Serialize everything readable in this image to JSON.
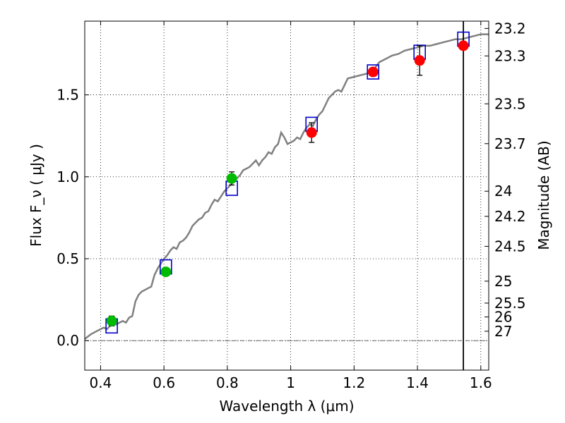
{
  "chart_data": {
    "type": "scatter",
    "xlabel": "Wavelength  λ (μm)",
    "ylabel": "Flux  F_ν  ( μJy )",
    "ylabel_right": "Magnitude (AB)",
    "xlim": [
      0.35,
      1.625
    ],
    "ylim": [
      -0.18,
      1.95
    ],
    "grid": true,
    "x_ticks": [
      {
        "value": 0.4,
        "label": "0.4"
      },
      {
        "value": 0.6,
        "label": "0.6"
      },
      {
        "value": 0.8,
        "label": "0.8"
      },
      {
        "value": 1.0,
        "label": "1"
      },
      {
        "value": 1.2,
        "label": "1.2"
      },
      {
        "value": 1.4,
        "label": "1.4"
      },
      {
        "value": 1.6,
        "label": "1.6"
      }
    ],
    "y_ticks": [
      {
        "value": 0.0,
        "label": "0.0"
      },
      {
        "value": 0.5,
        "label": "0.5"
      },
      {
        "value": 1.0,
        "label": "1.0"
      },
      {
        "value": 1.5,
        "label": "1.5"
      }
    ],
    "magnitude_ticks": [
      "23.2",
      "23.3",
      "23.5",
      "23.7",
      "24",
      "24.2",
      "24.5",
      "25",
      "25.5",
      "26",
      "27"
    ],
    "vertical_line_x": 1.545,
    "model_spectrum": {
      "color": "#808080",
      "points": [
        [
          0.35,
          0.01
        ],
        [
          0.37,
          0.04
        ],
        [
          0.39,
          0.06
        ],
        [
          0.41,
          0.08
        ],
        [
          0.42,
          0.07
        ],
        [
          0.43,
          0.09
        ],
        [
          0.45,
          0.1
        ],
        [
          0.47,
          0.12
        ],
        [
          0.48,
          0.11
        ],
        [
          0.49,
          0.14
        ],
        [
          0.5,
          0.15
        ],
        [
          0.51,
          0.24
        ],
        [
          0.52,
          0.28
        ],
        [
          0.53,
          0.3
        ],
        [
          0.55,
          0.32
        ],
        [
          0.56,
          0.33
        ],
        [
          0.57,
          0.4
        ],
        [
          0.58,
          0.44
        ],
        [
          0.59,
          0.47
        ],
        [
          0.6,
          0.5
        ],
        [
          0.61,
          0.52
        ],
        [
          0.62,
          0.55
        ],
        [
          0.63,
          0.57
        ],
        [
          0.64,
          0.56
        ],
        [
          0.65,
          0.6
        ],
        [
          0.66,
          0.61
        ],
        [
          0.67,
          0.63
        ],
        [
          0.68,
          0.66
        ],
        [
          0.69,
          0.7
        ],
        [
          0.7,
          0.72
        ],
        [
          0.71,
          0.74
        ],
        [
          0.72,
          0.75
        ],
        [
          0.73,
          0.78
        ],
        [
          0.74,
          0.79
        ],
        [
          0.75,
          0.83
        ],
        [
          0.76,
          0.86
        ],
        [
          0.77,
          0.85
        ],
        [
          0.78,
          0.88
        ],
        [
          0.79,
          0.91
        ],
        [
          0.8,
          0.93
        ],
        [
          0.81,
          0.95
        ],
        [
          0.82,
          0.97
        ],
        [
          0.83,
          0.99
        ],
        [
          0.84,
          1.01
        ],
        [
          0.85,
          1.04
        ],
        [
          0.86,
          1.05
        ],
        [
          0.87,
          1.06
        ],
        [
          0.88,
          1.08
        ],
        [
          0.89,
          1.1
        ],
        [
          0.9,
          1.07
        ],
        [
          0.91,
          1.1
        ],
        [
          0.92,
          1.12
        ],
        [
          0.93,
          1.15
        ],
        [
          0.94,
          1.14
        ],
        [
          0.95,
          1.18
        ],
        [
          0.96,
          1.2
        ],
        [
          0.97,
          1.27
        ],
        [
          0.98,
          1.24
        ],
        [
          0.99,
          1.2
        ],
        [
          1.0,
          1.21
        ],
        [
          1.01,
          1.22
        ],
        [
          1.02,
          1.24
        ],
        [
          1.03,
          1.23
        ],
        [
          1.04,
          1.27
        ],
        [
          1.05,
          1.3
        ],
        [
          1.06,
          1.32
        ],
        [
          1.07,
          1.31
        ],
        [
          1.08,
          1.35
        ],
        [
          1.09,
          1.38
        ],
        [
          1.1,
          1.4
        ],
        [
          1.11,
          1.44
        ],
        [
          1.12,
          1.48
        ],
        [
          1.13,
          1.5
        ],
        [
          1.14,
          1.52
        ],
        [
          1.15,
          1.53
        ],
        [
          1.16,
          1.52
        ],
        [
          1.17,
          1.56
        ],
        [
          1.18,
          1.6
        ],
        [
          1.2,
          1.61
        ],
        [
          1.22,
          1.62
        ],
        [
          1.24,
          1.63
        ],
        [
          1.26,
          1.65
        ],
        [
          1.28,
          1.7
        ],
        [
          1.3,
          1.72
        ],
        [
          1.32,
          1.74
        ],
        [
          1.34,
          1.75
        ],
        [
          1.36,
          1.77
        ],
        [
          1.38,
          1.78
        ],
        [
          1.4,
          1.79
        ],
        [
          1.42,
          1.8
        ],
        [
          1.44,
          1.8
        ],
        [
          1.46,
          1.81
        ],
        [
          1.48,
          1.82
        ],
        [
          1.5,
          1.83
        ],
        [
          1.52,
          1.84
        ],
        [
          1.54,
          1.84
        ],
        [
          1.56,
          1.85
        ],
        [
          1.58,
          1.86
        ],
        [
          1.6,
          1.87
        ],
        [
          1.625,
          1.87
        ]
      ]
    },
    "series": [
      {
        "marker": "circle",
        "color": "#00bb00",
        "points": [
          {
            "x": 0.435,
            "y": 0.12,
            "err": 0.03
          },
          {
            "x": 0.606,
            "y": 0.42,
            "err": 0.02
          },
          {
            "x": 0.814,
            "y": 0.99,
            "err": 0.04
          }
        ]
      },
      {
        "marker": "circle",
        "color": "#ff0000",
        "points": [
          {
            "x": 1.066,
            "y": 1.27,
            "err": 0.06
          },
          {
            "x": 1.26,
            "y": 1.64,
            "err": 0.02
          },
          {
            "x": 1.407,
            "y": 1.71,
            "err": 0.09
          },
          {
            "x": 1.545,
            "y": 1.8,
            "err": 0.02
          }
        ]
      },
      {
        "marker": "open-square",
        "color": "#0000cc",
        "points": [
          {
            "x": 0.435,
            "y": 0.09
          },
          {
            "x": 0.606,
            "y": 0.45
          },
          {
            "x": 0.814,
            "y": 0.93
          },
          {
            "x": 1.066,
            "y": 1.32
          },
          {
            "x": 1.26,
            "y": 1.64
          },
          {
            "x": 1.407,
            "y": 1.76
          },
          {
            "x": 1.545,
            "y": 1.84
          }
        ]
      }
    ]
  }
}
